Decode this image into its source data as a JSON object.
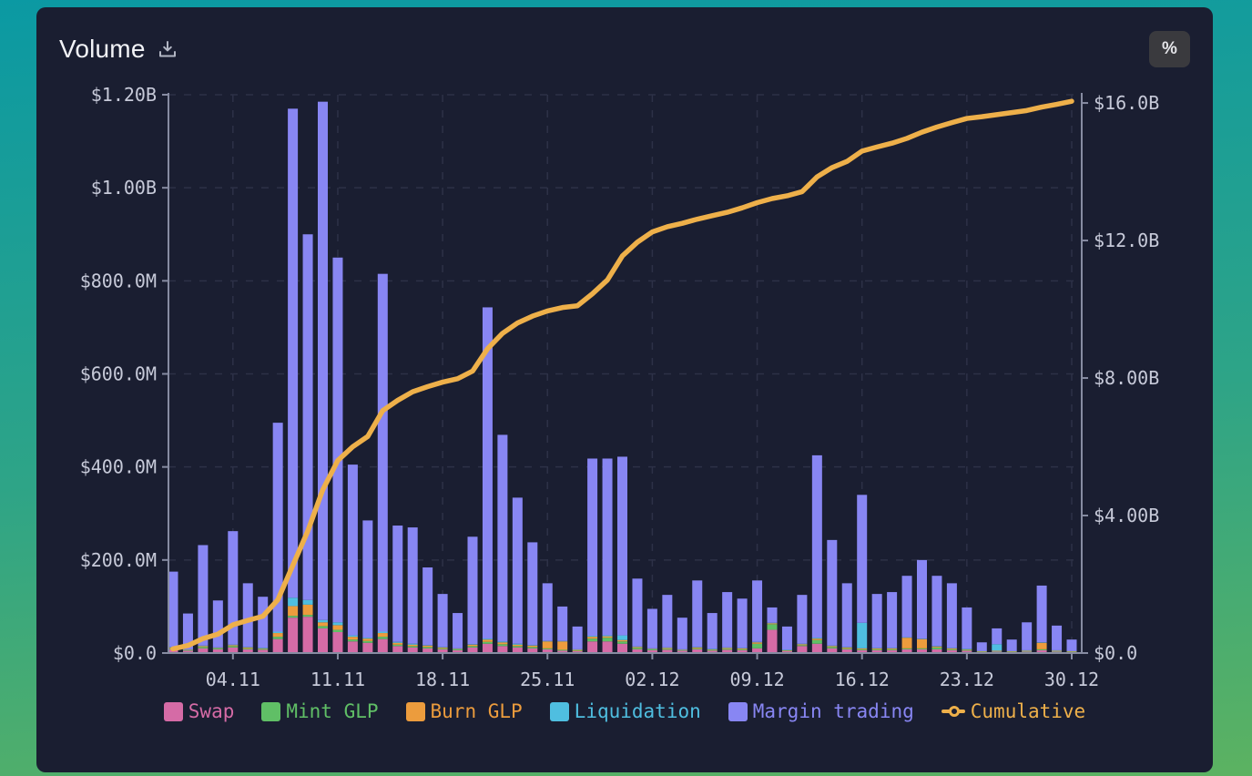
{
  "header": {
    "title": "Volume",
    "percent_label": "%"
  },
  "legend": [
    {
      "label": "Swap",
      "color": "#d56ba6",
      "marker": "square"
    },
    {
      "label": "Mint GLP",
      "color": "#60bf66",
      "marker": "square"
    },
    {
      "label": "Burn GLP",
      "color": "#ec9c3d",
      "marker": "square"
    },
    {
      "label": "Liquidation",
      "color": "#4fbee0",
      "marker": "square"
    },
    {
      "label": "Margin trading",
      "color": "#8886f3",
      "marker": "square"
    },
    {
      "label": "Cumulative",
      "color": "#eeb04a",
      "marker": "line"
    }
  ],
  "chart_data": {
    "type": "stacked-bar-with-line",
    "title": "Volume",
    "categories": [
      "31.10",
      "01.11",
      "02.11",
      "03.11",
      "04.11",
      "05.11",
      "06.11",
      "07.11",
      "08.11",
      "09.11",
      "10.11",
      "11.11",
      "12.11",
      "13.11",
      "14.11",
      "15.11",
      "16.11",
      "17.11",
      "18.11",
      "19.11",
      "20.11",
      "21.11",
      "22.11",
      "23.11",
      "24.11",
      "25.11",
      "26.11",
      "27.11",
      "28.11",
      "29.11",
      "30.11",
      "01.12",
      "02.12",
      "03.12",
      "04.12",
      "05.12",
      "06.12",
      "07.12",
      "08.12",
      "09.12",
      "10.12",
      "11.12",
      "12.12",
      "13.12",
      "14.12",
      "15.12",
      "16.12",
      "17.12",
      "18.12",
      "19.12",
      "20.12",
      "21.12",
      "22.12",
      "23.12",
      "24.12",
      "25.12",
      "26.12",
      "27.12",
      "28.12",
      "29.12",
      "30.12"
    ],
    "x_tick_labels": [
      "04.11",
      "11.11",
      "18.11",
      "25.11",
      "02.12",
      "09.12",
      "16.12",
      "23.12",
      "30.12"
    ],
    "left_axis": {
      "unit": "$M",
      "tick_values": [
        0,
        200,
        400,
        600,
        800,
        1000,
        1200
      ],
      "tick_labels": [
        "$0.0",
        "$200.0M",
        "$400.0M",
        "$600.0M",
        "$800.0M",
        "$1.00B",
        "$1.20B"
      ],
      "max": 1200
    },
    "right_axis": {
      "unit": "$B",
      "tick_values": [
        0,
        4,
        8,
        12,
        16
      ],
      "tick_labels": [
        "$0.0",
        "$4.00B",
        "$8.00B",
        "$12.0B",
        "$16.0B"
      ],
      "max": 16.24
    },
    "series": [
      {
        "name": "Swap",
        "color": "#d56ba6",
        "values": [
          8,
          5,
          10,
          8,
          12,
          8,
          7,
          30,
          76,
          78,
          53,
          45,
          25,
          22,
          30,
          15,
          12,
          10,
          8,
          6,
          12,
          20,
          15,
          12,
          10,
          8,
          5,
          4,
          25,
          25,
          20,
          8,
          6,
          7,
          5,
          8,
          5,
          7,
          6,
          10,
          50,
          4,
          15,
          20,
          10,
          8,
          6,
          6,
          6,
          8,
          8,
          8,
          6,
          5,
          2,
          3,
          2,
          3,
          6,
          3,
          2
        ]
      },
      {
        "name": "Mint GLP",
        "color": "#60bf66",
        "values": [
          2,
          1,
          3,
          2,
          3,
          2,
          2,
          5,
          4,
          4,
          5,
          5,
          4,
          4,
          5,
          3,
          3,
          3,
          2,
          2,
          3,
          4,
          4,
          3,
          3,
          2,
          2,
          1,
          6,
          8,
          5,
          3,
          2,
          2,
          1,
          2,
          2,
          2,
          2,
          10,
          12,
          1,
          2,
          8,
          3,
          2,
          2,
          2,
          2,
          2,
          2,
          4,
          2,
          2,
          1,
          1,
          1,
          1,
          2,
          1,
          1
        ]
      },
      {
        "name": "Burn GLP",
        "color": "#ec9c3d",
        "values": [
          2,
          1,
          2,
          1,
          2,
          2,
          1,
          8,
          21,
          22,
          8,
          10,
          6,
          5,
          8,
          4,
          3,
          3,
          2,
          1,
          3,
          5,
          4,
          3,
          3,
          15,
          18,
          2,
          4,
          3,
          3,
          2,
          1,
          2,
          1,
          2,
          1,
          2,
          2,
          3,
          2,
          1,
          2,
          3,
          2,
          2,
          2,
          2,
          2,
          23,
          20,
          2,
          2,
          1,
          1,
          1,
          1,
          1,
          14,
          1,
          1
        ]
      },
      {
        "name": "Liquidation",
        "color": "#4fbee0",
        "values": [
          1,
          1,
          1,
          1,
          1,
          1,
          1,
          3,
          18,
          10,
          5,
          6,
          3,
          2,
          3,
          2,
          2,
          1,
          1,
          1,
          1,
          2,
          2,
          2,
          1,
          1,
          1,
          1,
          2,
          2,
          10,
          1,
          1,
          1,
          1,
          1,
          1,
          1,
          1,
          1,
          1,
          1,
          1,
          2,
          1,
          1,
          55,
          1,
          1,
          1,
          1,
          1,
          1,
          1,
          0,
          14,
          0,
          1,
          1,
          1,
          0
        ]
      },
      {
        "name": "Margin trading",
        "color": "#8886f3",
        "values": [
          162,
          77,
          216,
          101,
          244,
          137,
          110,
          449,
          1051,
          786,
          1114,
          784,
          367,
          252,
          769,
          250,
          250,
          167,
          114,
          76,
          231,
          712,
          444,
          314,
          221,
          124,
          74,
          49,
          381,
          380,
          384,
          146,
          85,
          113,
          68,
          143,
          77,
          119,
          106,
          132,
          33,
          50,
          105,
          392,
          227,
          137,
          275,
          116,
          120,
          132,
          169,
          151,
          139,
          89,
          19,
          34,
          25,
          60,
          122,
          53,
          25
        ]
      }
    ],
    "line": {
      "name": "Cumulative",
      "color": "#eeb04a",
      "axis": "right",
      "values": [
        0.12,
        0.22,
        0.42,
        0.55,
        0.82,
        0.95,
        1.07,
        1.55,
        2.55,
        3.55,
        4.75,
        5.6,
        6.0,
        6.3,
        7.05,
        7.35,
        7.6,
        7.75,
        7.88,
        7.98,
        8.2,
        8.85,
        9.3,
        9.6,
        9.8,
        9.95,
        10.05,
        10.1,
        10.45,
        10.85,
        11.55,
        11.95,
        12.25,
        12.4,
        12.5,
        12.62,
        12.72,
        12.82,
        12.95,
        13.1,
        13.22,
        13.3,
        13.42,
        13.85,
        14.12,
        14.3,
        14.6,
        14.72,
        14.83,
        14.97,
        15.15,
        15.3,
        15.43,
        15.55,
        15.6,
        15.66,
        15.72,
        15.78,
        15.88,
        15.96,
        16.05
      ]
    },
    "grid": true,
    "legend_position": "bottom"
  },
  "style": {
    "card_bg": "#1a1e31",
    "grid_color": "#2d3147",
    "axis_line_color": "#878ca2",
    "axis_text_color": "#c7cad9",
    "gradient_top": "#0b99a3",
    "gradient_bottom": "#5cb261"
  }
}
